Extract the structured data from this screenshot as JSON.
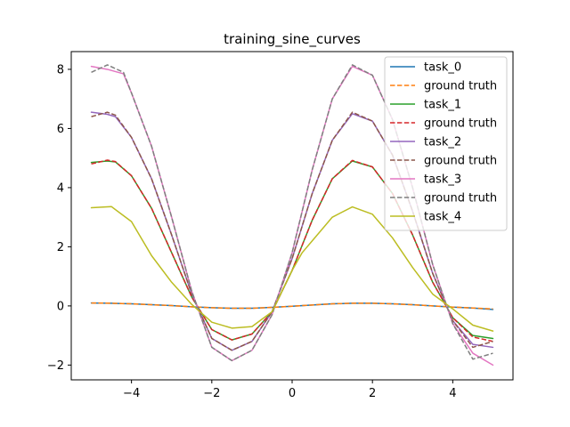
{
  "chart_data": {
    "type": "line",
    "title": "training_sine_curves",
    "xlabel": "",
    "ylabel": "",
    "xlim": [
      -5.5,
      5.5
    ],
    "ylim": [
      -2.5,
      8.6
    ],
    "xticks": [
      -4,
      -2,
      0,
      2,
      4
    ],
    "yticks": [
      -2,
      0,
      2,
      4,
      6,
      8
    ],
    "x_tick_labels": [
      "−4",
      "−2",
      "0",
      "2",
      "4"
    ],
    "y_tick_labels": [
      "−2",
      "0",
      "2",
      "4",
      "6",
      "8"
    ],
    "grid": false,
    "legend_placement": "top-right",
    "series": [
      {
        "name": "task_0",
        "color": "#1f77b4",
        "style": "solid",
        "x": [
          -5,
          -4.5,
          -4,
          -3.5,
          -3,
          -2.5,
          -2,
          -1.5,
          -1,
          -0.5,
          0,
          0.5,
          1,
          1.5,
          2,
          2.5,
          3,
          3.5,
          4,
          4.5,
          5
        ],
        "y": [
          0.1,
          0.09,
          0.07,
          0.04,
          0.01,
          -0.03,
          -0.06,
          -0.08,
          -0.08,
          -0.05,
          -0.01,
          0.03,
          0.07,
          0.09,
          0.09,
          0.07,
          0.04,
          0.0,
          -0.04,
          -0.07,
          -0.12
        ]
      },
      {
        "name": "ground truth",
        "color": "#ff7f0e",
        "style": "dashed",
        "x": [
          -5,
          -4.5,
          -4,
          -3.5,
          -3,
          -2.5,
          -2,
          -1.5,
          -1,
          -0.5,
          0,
          0.5,
          1,
          1.5,
          2,
          2.5,
          3,
          3.5,
          4,
          4.5,
          5
        ],
        "y": [
          0.1,
          0.09,
          0.07,
          0.04,
          0.01,
          -0.03,
          -0.06,
          -0.08,
          -0.08,
          -0.05,
          -0.01,
          0.03,
          0.07,
          0.09,
          0.09,
          0.07,
          0.04,
          0.0,
          -0.04,
          -0.07,
          -0.1
        ]
      },
      {
        "name": "task_1",
        "color": "#2ca02c",
        "style": "solid",
        "x": [
          -5,
          -4.6,
          -4.4,
          -4,
          -3.5,
          -3,
          -2.5,
          -2,
          -1.5,
          -1,
          -0.5,
          0,
          0.5,
          1,
          1.5,
          2,
          2.5,
          3,
          3.5,
          4,
          4.5,
          5
        ],
        "y": [
          4.85,
          4.9,
          4.87,
          4.4,
          3.3,
          1.8,
          0.3,
          -0.8,
          -1.15,
          -0.95,
          -0.2,
          1.2,
          2.9,
          4.3,
          4.9,
          4.7,
          3.8,
          2.4,
          0.8,
          -0.4,
          -1.0,
          -1.1
        ]
      },
      {
        "name": "ground truth",
        "color": "#d62728",
        "style": "dashed",
        "x": [
          -5,
          -4.6,
          -4.4,
          -4,
          -3.5,
          -3,
          -2.5,
          -2,
          -1.5,
          -1,
          -0.5,
          0,
          0.5,
          1,
          1.5,
          2,
          2.5,
          3,
          3.5,
          4,
          4.5,
          5
        ],
        "y": [
          4.8,
          4.93,
          4.88,
          4.4,
          3.3,
          1.8,
          0.3,
          -0.8,
          -1.15,
          -0.95,
          -0.2,
          1.2,
          2.9,
          4.3,
          4.92,
          4.7,
          3.8,
          2.4,
          0.8,
          -0.4,
          -1.05,
          -1.2
        ]
      },
      {
        "name": "task_2",
        "color": "#9467bd",
        "style": "solid",
        "x": [
          -5,
          -4.6,
          -4.4,
          -4,
          -3.5,
          -3,
          -2.5,
          -2,
          -1.5,
          -1,
          -0.5,
          0,
          0.5,
          1,
          1.5,
          2,
          2.5,
          3,
          3.5,
          4,
          4.5,
          5
        ],
        "y": [
          6.55,
          6.48,
          6.4,
          5.7,
          4.3,
          2.4,
          0.4,
          -1.1,
          -1.5,
          -1.2,
          -0.2,
          1.6,
          3.8,
          5.6,
          6.5,
          6.25,
          5.1,
          3.2,
          1.1,
          -0.5,
          -1.3,
          -1.4
        ]
      },
      {
        "name": "ground truth",
        "color": "#8c564b",
        "style": "dashed",
        "x": [
          -5,
          -4.6,
          -4.4,
          -4,
          -3.5,
          -3,
          -2.5,
          -2,
          -1.5,
          -1,
          -0.5,
          0,
          0.5,
          1,
          1.5,
          2,
          2.5,
          3,
          3.5,
          4,
          4.5,
          5
        ],
        "y": [
          6.4,
          6.55,
          6.45,
          5.7,
          4.3,
          2.4,
          0.4,
          -1.1,
          -1.5,
          -1.2,
          -0.2,
          1.6,
          3.8,
          5.6,
          6.55,
          6.25,
          5.1,
          3.2,
          1.1,
          -0.5,
          -1.4,
          -1.2
        ]
      },
      {
        "name": "task_3",
        "color": "#e377c2",
        "style": "solid",
        "x": [
          -5,
          -4.6,
          -4.2,
          -4,
          -3.5,
          -3,
          -2.5,
          -2,
          -1.5,
          -1,
          -0.5,
          0,
          0.5,
          1,
          1.5,
          2,
          2.5,
          3,
          3.5,
          4,
          4.5,
          5
        ],
        "y": [
          8.1,
          8.0,
          7.85,
          7.2,
          5.4,
          3.0,
          0.5,
          -1.4,
          -1.85,
          -1.5,
          -0.3,
          1.8,
          4.6,
          7.0,
          8.1,
          7.8,
          6.3,
          4.0,
          1.4,
          -0.6,
          -1.6,
          -2.0
        ]
      },
      {
        "name": "ground truth",
        "color": "#7f7f7f",
        "style": "dashed",
        "x": [
          -5,
          -4.6,
          -4.2,
          -4,
          -3.5,
          -3,
          -2.5,
          -2,
          -1.5,
          -1,
          -0.5,
          0,
          0.5,
          1,
          1.5,
          2,
          2.5,
          3,
          3.5,
          4,
          4.5,
          5
        ],
        "y": [
          7.9,
          8.15,
          7.9,
          7.2,
          5.4,
          3.0,
          0.5,
          -1.4,
          -1.85,
          -1.5,
          -0.3,
          1.8,
          4.6,
          7.0,
          8.15,
          7.8,
          6.3,
          4.0,
          1.4,
          -0.6,
          -1.8,
          -1.6
        ]
      },
      {
        "name": "task_4",
        "color": "#bcbd22",
        "style": "solid",
        "x": [
          -5,
          -4.5,
          -4,
          -3.5,
          -3,
          -2.5,
          -2,
          -1.5,
          -1,
          -0.5,
          0,
          0.25,
          0.5,
          1,
          1.5,
          2,
          2.5,
          3,
          3.5,
          4,
          4.5,
          5
        ],
        "y": [
          3.32,
          3.36,
          2.85,
          1.7,
          0.8,
          0.05,
          -0.55,
          -0.75,
          -0.7,
          -0.2,
          1.2,
          1.8,
          2.2,
          3.0,
          3.35,
          3.1,
          2.3,
          1.3,
          0.4,
          -0.1,
          -0.65,
          -0.85
        ]
      }
    ]
  }
}
